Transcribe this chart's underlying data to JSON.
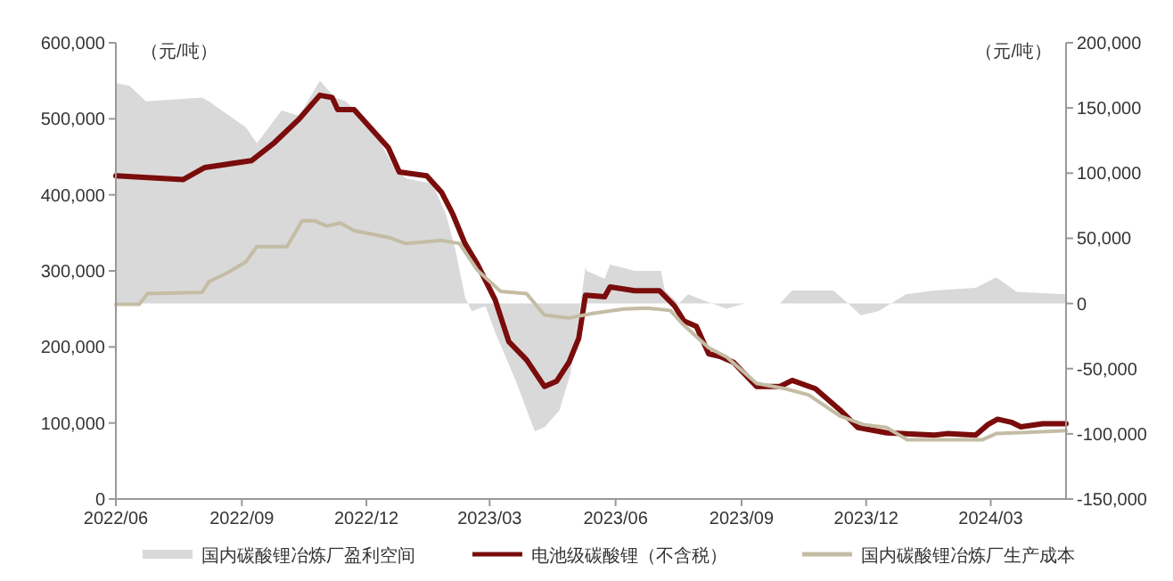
{
  "chart_data": {
    "type": "line",
    "ylabel": "（元/吨）",
    "y2label": "（元/吨）",
    "xlim": [
      "2022-06-01",
      "2024-04-25"
    ],
    "xticks": [
      {
        "value": "2022-06-01",
        "label": "2022/06"
      },
      {
        "value": "2022-09-01",
        "label": "2022/09"
      },
      {
        "value": "2022-12-01",
        "label": "2022/12"
      },
      {
        "value": "2023-03-01",
        "label": "2023/03"
      },
      {
        "value": "2023-06-01",
        "label": "2023/06"
      },
      {
        "value": "2023-09-01",
        "label": "2023/09"
      },
      {
        "value": "2023-12-01",
        "label": "2023/12"
      },
      {
        "value": "2024-03-01",
        "label": "2024/03"
      }
    ],
    "ylim": [
      0,
      600000
    ],
    "yticks": [
      {
        "value": 0,
        "label": "0"
      },
      {
        "value": 100000,
        "label": "100,000"
      },
      {
        "value": 200000,
        "label": "200,000"
      },
      {
        "value": 300000,
        "label": "300,000"
      },
      {
        "value": 400000,
        "label": "400,000"
      },
      {
        "value": 500000,
        "label": "500,000"
      },
      {
        "value": 600000,
        "label": "600,000"
      }
    ],
    "y2lim": [
      -150000,
      200000
    ],
    "y2ticks": [
      {
        "value": -150000,
        "label": "-150,000"
      },
      {
        "value": -100000,
        "label": "-100,000"
      },
      {
        "value": -50000,
        "label": "-50,000"
      },
      {
        "value": 0,
        "label": "0"
      },
      {
        "value": 50000,
        "label": "50,000"
      },
      {
        "value": 100000,
        "label": "100,000"
      },
      {
        "value": 150000,
        "label": "150,000"
      },
      {
        "value": 200000,
        "label": "200,000"
      }
    ],
    "grid": false,
    "legend": "bottom",
    "series": [
      {
        "name": "国内碳酸锂冶炼厂盈利空间",
        "type": "area",
        "axis": "y2",
        "color": "#d9d9d9",
        "x": [
          "2022-06-01",
          "2022-06-11",
          "2022-06-23",
          "2022-08-03",
          "2022-08-08",
          "2022-09-04",
          "2022-09-12",
          "2022-09-30",
          "2022-10-13",
          "2022-10-28",
          "2022-11-08",
          "2022-11-16",
          "2022-12-04",
          "2022-12-21",
          "2022-12-30",
          "2023-01-18",
          "2023-01-28",
          "2023-02-04",
          "2023-02-11",
          "2023-02-16",
          "2023-02-26",
          "2023-03-05",
          "2023-03-20",
          "2023-04-03",
          "2023-04-10",
          "2023-04-21",
          "2023-04-29",
          "2023-05-06",
          "2023-05-10",
          "2023-05-11",
          "2023-05-24",
          "2023-05-28",
          "2023-06-15",
          "2023-07-04",
          "2023-07-07",
          "2023-07-17",
          "2023-07-24",
          "2023-08-03",
          "2023-08-21",
          "2023-09-03",
          "2023-09-29",
          "2023-10-08",
          "2023-11-07",
          "2023-11-19",
          "2023-11-27",
          "2023-12-10",
          "2023-12-30",
          "2024-01-20",
          "2024-02-19",
          "2024-03-05",
          "2024-03-20",
          "2024-04-25"
        ],
        "values": [
          169000,
          167000,
          155000,
          158000,
          155000,
          135000,
          123000,
          148000,
          144000,
          171000,
          158000,
          155000,
          137000,
          105000,
          96000,
          92000,
          69000,
          41000,
          5000,
          -6000,
          -2000,
          -22000,
          -59000,
          -98000,
          -95000,
          -82000,
          -54000,
          -4000,
          28000,
          25000,
          19000,
          30000,
          25000,
          25000,
          10000,
          0,
          7000,
          3000,
          -4000,
          0,
          0,
          10000,
          10000,
          -1000,
          -9000,
          -6000,
          7000,
          10000,
          12000,
          20000,
          9000,
          7000
        ]
      },
      {
        "name": "电池级碳酸锂（不含税）",
        "color": "#7a0c0c",
        "x": [
          "2022-06-01",
          "2022-07-20",
          "2022-08-05",
          "2022-09-08",
          "2022-09-25",
          "2022-10-13",
          "2022-10-28",
          "2022-11-06",
          "2022-11-10",
          "2022-11-22",
          "2022-12-04",
          "2022-12-17",
          "2022-12-25",
          "2023-01-14",
          "2023-01-25",
          "2023-02-02",
          "2023-02-11",
          "2023-02-20",
          "2023-03-05",
          "2023-03-15",
          "2023-03-28",
          "2023-04-10",
          "2023-04-19",
          "2023-04-28",
          "2023-05-05",
          "2023-05-10",
          "2023-05-24",
          "2023-05-28",
          "2023-06-15",
          "2023-07-03",
          "2023-07-14",
          "2023-07-21",
          "2023-07-30",
          "2023-08-08",
          "2023-08-17",
          "2023-08-26",
          "2023-09-12",
          "2023-09-29",
          "2023-10-08",
          "2023-10-25",
          "2023-11-12",
          "2023-11-25",
          "2023-12-16",
          "2024-01-20",
          "2024-01-29",
          "2024-02-19",
          "2024-02-28",
          "2024-03-06",
          "2024-03-16",
          "2024-03-23",
          "2024-04-08",
          "2024-04-25"
        ],
        "values": [
          425000,
          420000,
          436000,
          445000,
          469000,
          500000,
          531000,
          528000,
          512000,
          512000,
          488000,
          462000,
          430000,
          425000,
          403000,
          375000,
          336000,
          309000,
          262000,
          207000,
          183000,
          148000,
          155000,
          180000,
          211000,
          268000,
          266000,
          279000,
          274000,
          274000,
          254000,
          234000,
          227000,
          191000,
          187000,
          180000,
          148000,
          148000,
          156000,
          145000,
          117000,
          94000,
          87000,
          84000,
          86000,
          84000,
          98000,
          105000,
          101000,
          95000,
          99000,
          99000
        ]
      },
      {
        "name": "国内碳酸锂冶炼厂生产成本",
        "color": "#c4bca4",
        "x": [
          "2022-06-01",
          "2022-06-18",
          "2022-06-24",
          "2022-08-03",
          "2022-08-08",
          "2022-08-21",
          "2022-09-04",
          "2022-09-12",
          "2022-10-04",
          "2022-10-15",
          "2022-10-24",
          "2022-11-02",
          "2022-11-12",
          "2022-11-22",
          "2022-12-17",
          "2022-12-30",
          "2023-01-25",
          "2023-02-07",
          "2023-02-20",
          "2023-03-09",
          "2023-03-28",
          "2023-04-10",
          "2023-04-28",
          "2023-05-15",
          "2023-06-07",
          "2023-06-24",
          "2023-07-11",
          "2023-07-20",
          "2023-08-08",
          "2023-08-21",
          "2023-09-12",
          "2023-10-03",
          "2023-10-20",
          "2023-11-12",
          "2023-11-29",
          "2023-12-16",
          "2023-12-31",
          "2024-02-24",
          "2024-03-05",
          "2024-03-31",
          "2024-04-25"
        ],
        "values": [
          256000,
          256000,
          270000,
          272000,
          286000,
          297000,
          312000,
          332000,
          332000,
          366000,
          366000,
          359000,
          363000,
          353000,
          344000,
          336000,
          340000,
          336000,
          301000,
          273000,
          270000,
          242000,
          238000,
          244000,
          250000,
          251000,
          248000,
          230000,
          199000,
          187000,
          152000,
          145000,
          137000,
          109000,
          98000,
          94000,
          78000,
          78000,
          86000,
          88000,
          90000
        ]
      }
    ]
  }
}
